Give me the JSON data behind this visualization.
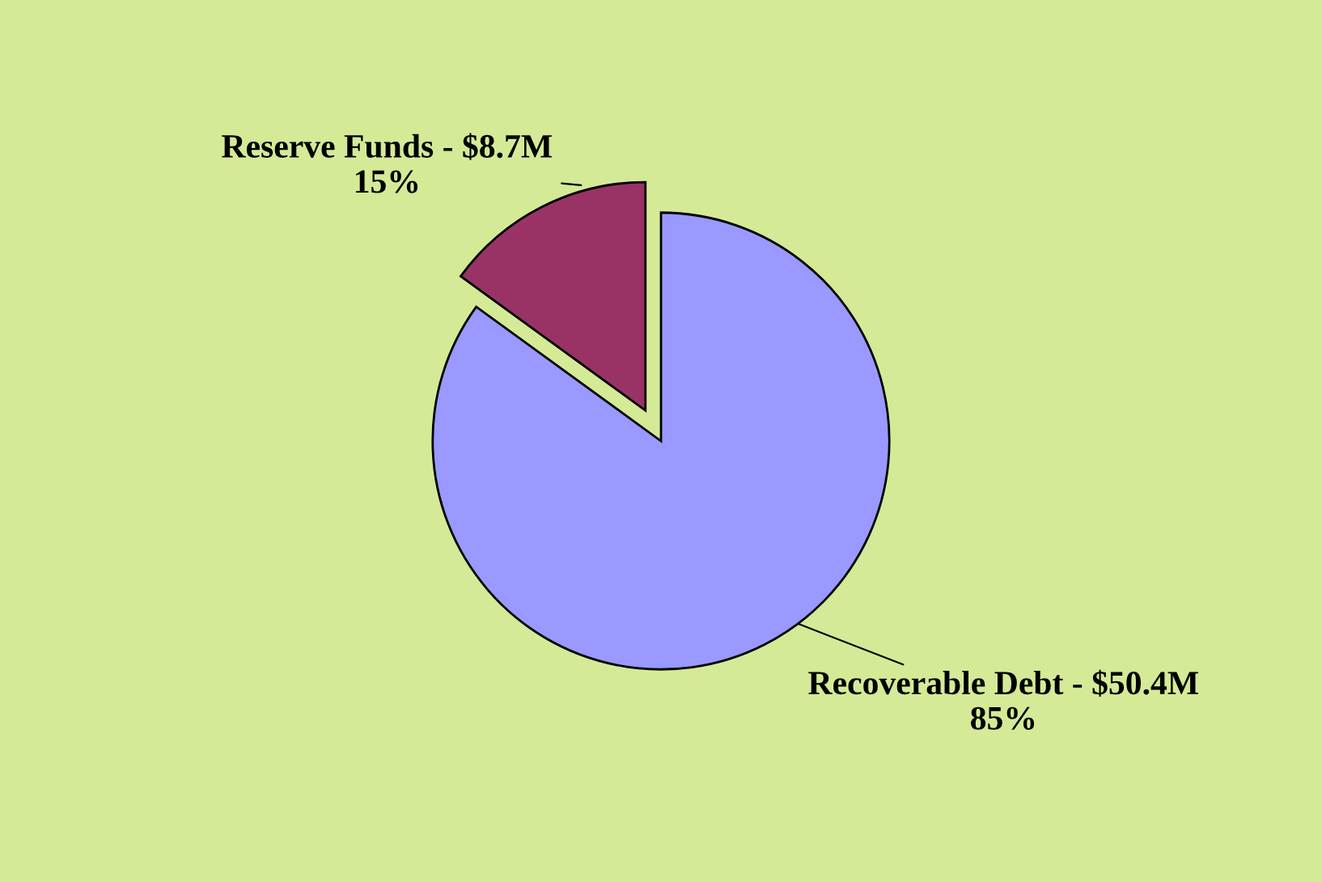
{
  "chart_data": {
    "type": "pie",
    "categories": [
      "Reserve Funds - $8.7M",
      "Recoverable Debt - $50.4M"
    ],
    "values": [
      15,
      85
    ],
    "value_labels": [
      "15%",
      "85%"
    ],
    "colors": [
      "#993366",
      "#9999ff"
    ]
  }
}
